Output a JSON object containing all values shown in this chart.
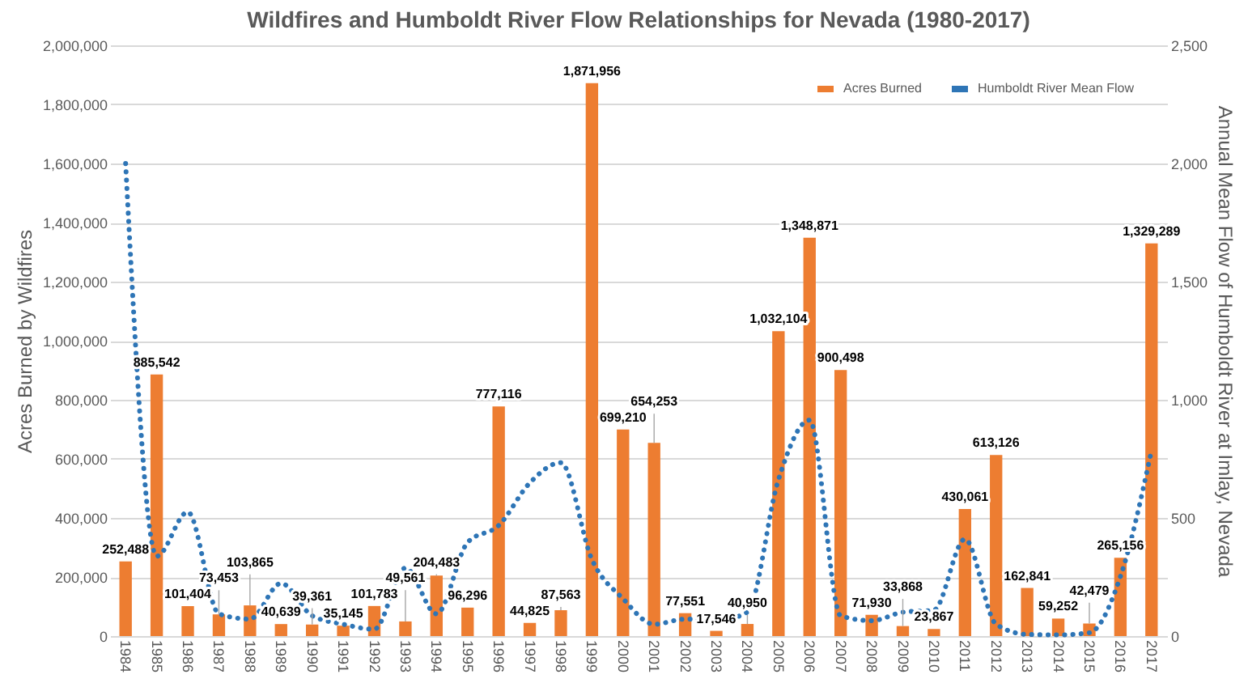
{
  "chart_data": {
    "type": "bar",
    "title": "Wildfires and Humboldt River Flow Relationships for Nevada (1980-2017)",
    "ylabel": "Acres Burned by Wildfires",
    "y2label": "Annual Mean Flow of Humboldt River at Imlay, Nevada",
    "categories": [
      "1984",
      "1985",
      "1986",
      "1987",
      "1988",
      "1989",
      "1990",
      "1991",
      "1992",
      "1993",
      "1994",
      "1995",
      "1996",
      "1997",
      "1998",
      "1999",
      "2000",
      "2001",
      "2002",
      "2003",
      "2004",
      "2005",
      "2006",
      "2007",
      "2008",
      "2009",
      "2010",
      "2011",
      "2012",
      "2013",
      "2014",
      "2015",
      "2016",
      "2017"
    ],
    "series": [
      {
        "name": "Acres Burned",
        "color": "#ed7d31",
        "values": [
          252488,
          885542,
          101404,
          73453,
          103865,
          40639,
          39361,
          35145,
          101783,
          49561,
          204483,
          96296,
          777116,
          44825,
          87563,
          1871956,
          699210,
          654253,
          77551,
          17546,
          40950,
          1032104,
          1348871,
          900498,
          71930,
          33868,
          23867,
          430061,
          613126,
          162841,
          59252,
          42479,
          265156,
          1329289
        ],
        "value_labels": [
          "252,488",
          "885,542",
          "101,404",
          "73,453",
          "103,865",
          "40,639",
          "39,361",
          "35,145",
          "101,783",
          "49,561",
          "204,483",
          "96,296",
          "777,116",
          "44,825",
          "87,563",
          "1,871,956",
          "699,210",
          "654,253",
          "77,551",
          "17,546",
          "40,950",
          "1,032,104",
          "1,348,871",
          "900,498",
          "71,930",
          "33,868",
          "23,867",
          "430,061",
          "613,126",
          "162,841",
          "59,252",
          "42,479",
          "265,156",
          "1,329,289"
        ]
      },
      {
        "name": "Humboldt River Mean Flow",
        "type": "line",
        "axis": "y2",
        "color": "#2e75b6",
        "line_style": "dotted",
        "values": [
          2000,
          338,
          525,
          94,
          72,
          223,
          86,
          50,
          29,
          288,
          94,
          396,
          468,
          648,
          734,
          324,
          158,
          50,
          72,
          65,
          101,
          662,
          914,
          86,
          65,
          101,
          110,
          410,
          50,
          7,
          5,
          14,
          252,
          785
        ]
      }
    ],
    "ylim": [
      0,
      2000000
    ],
    "yticks": [
      0,
      {
        "value": 200000,
        "label": "200,000"
      },
      {
        "value": 400000,
        "label": "400,000"
      },
      {
        "value": 600000,
        "label": "600,000"
      },
      {
        "value": 800000,
        "label": "800,000"
      },
      {
        "value": 1000000,
        "label": "1,000,000"
      },
      {
        "value": 1200000,
        "label": "1,200,000"
      },
      {
        "value": 1400000,
        "label": "1,400,000"
      },
      {
        "value": 1600000,
        "label": "1,600,000"
      },
      {
        "value": 1800000,
        "label": "1,800,000"
      },
      {
        "value": 2000000,
        "label": "2,000,000"
      }
    ],
    "y2lim": [
      0,
      2500
    ],
    "y2ticks": [
      0,
      500,
      {
        "value": 1000,
        "label": "1,000"
      },
      {
        "value": 1500,
        "label": "1,500"
      },
      {
        "value": 2000,
        "label": "2,000"
      },
      {
        "value": 2500,
        "label": "2,500"
      }
    ],
    "grid": "y",
    "legend": "top right",
    "marker": "none"
  }
}
